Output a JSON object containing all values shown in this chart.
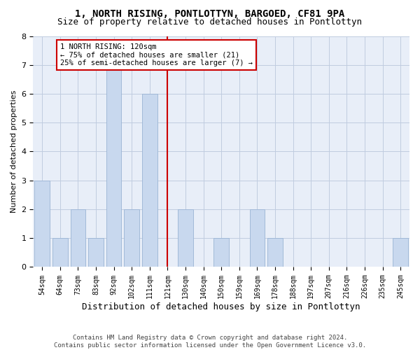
{
  "title": "1, NORTH RISING, PONTLOTTYN, BARGOED, CF81 9PA",
  "subtitle": "Size of property relative to detached houses in Pontlottyn",
  "xlabel": "Distribution of detached houses by size in Pontlottyn",
  "ylabel": "Number of detached properties",
  "categories": [
    "54sqm",
    "64sqm",
    "73sqm",
    "83sqm",
    "92sqm",
    "102sqm",
    "111sqm",
    "121sqm",
    "130sqm",
    "140sqm",
    "150sqm",
    "159sqm",
    "169sqm",
    "178sqm",
    "188sqm",
    "197sqm",
    "207sqm",
    "216sqm",
    "226sqm",
    "235sqm",
    "245sqm"
  ],
  "values": [
    3,
    1,
    2,
    1,
    7,
    2,
    6,
    0,
    2,
    0,
    1,
    0,
    2,
    1,
    0,
    0,
    0,
    0,
    0,
    0,
    1
  ],
  "bar_color": "#c8d8ee",
  "bar_edge_color": "#9ab4d4",
  "vline_x": 7,
  "vline_color": "#cc0000",
  "annotation_text": "1 NORTH RISING: 120sqm\n← 75% of detached houses are smaller (21)\n25% of semi-detached houses are larger (7) →",
  "annotation_box_color": "#ffffff",
  "annotation_box_edge": "#cc0000",
  "ylim": [
    0,
    8
  ],
  "yticks": [
    0,
    1,
    2,
    3,
    4,
    5,
    6,
    7,
    8
  ],
  "grid_color": "#c0cce0",
  "bg_color": "#e8eef8",
  "footer": "Contains HM Land Registry data © Crown copyright and database right 2024.\nContains public sector information licensed under the Open Government Licence v3.0.",
  "title_fontsize": 10,
  "subtitle_fontsize": 9,
  "xlabel_fontsize": 9,
  "ylabel_fontsize": 8,
  "tick_fontsize": 7,
  "footer_fontsize": 6.5
}
